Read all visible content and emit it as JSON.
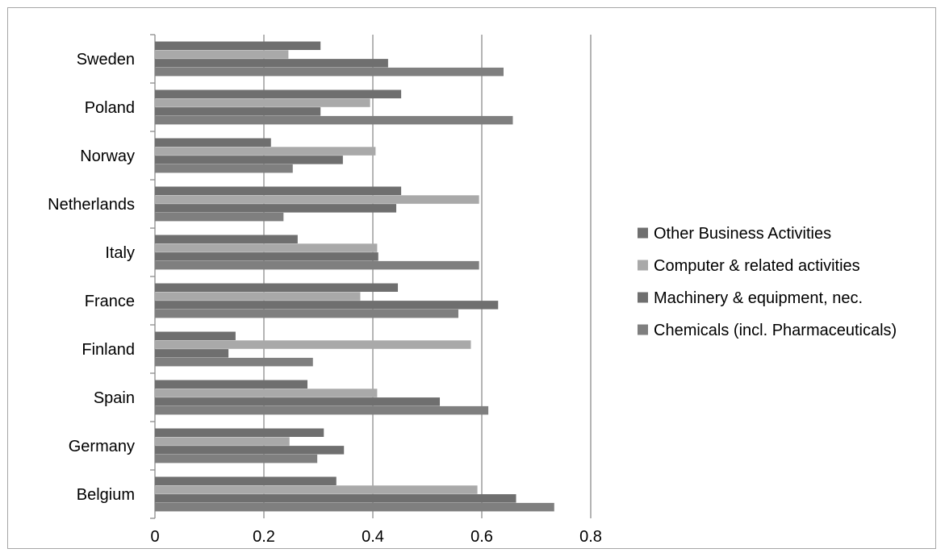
{
  "chart_data": {
    "type": "bar",
    "orientation": "horizontal",
    "categories": [
      "Belgium",
      "Germany",
      "Spain",
      "Finland",
      "France",
      "Italy",
      "Netherlands",
      "Norway",
      "Poland",
      "Sweden"
    ],
    "series": [
      {
        "name": "Other Business Activities",
        "color": "#6f6f6f",
        "values": [
          0.333,
          0.31,
          0.28,
          0.148,
          0.446,
          0.262,
          0.452,
          0.213,
          0.452,
          0.304
        ]
      },
      {
        "name": "Computer & related activities",
        "color": "#a9a9a9",
        "values": [
          0.592,
          0.247,
          0.408,
          0.58,
          0.377,
          0.408,
          0.595,
          0.405,
          0.395,
          0.245
        ]
      },
      {
        "name": "Machinery & equipment, nec.",
        "color": "#6f6f6f",
        "values": [
          0.663,
          0.347,
          0.523,
          0.135,
          0.63,
          0.41,
          0.443,
          0.345,
          0.304,
          0.428
        ]
      },
      {
        "name": "Chemicals (incl. Pharmaceuticals)",
        "color": "#7f7f7f",
        "values": [
          0.733,
          0.298,
          0.612,
          0.29,
          0.557,
          0.595,
          0.236,
          0.253,
          0.657,
          0.64
        ]
      }
    ],
    "xlim": [
      0,
      0.8
    ],
    "x_ticks": [
      "0",
      "0.2",
      "0.4",
      "0.6",
      "0.8"
    ],
    "grid": "vertical",
    "legend_position": "right",
    "title": "",
    "xlabel": "",
    "ylabel": ""
  }
}
